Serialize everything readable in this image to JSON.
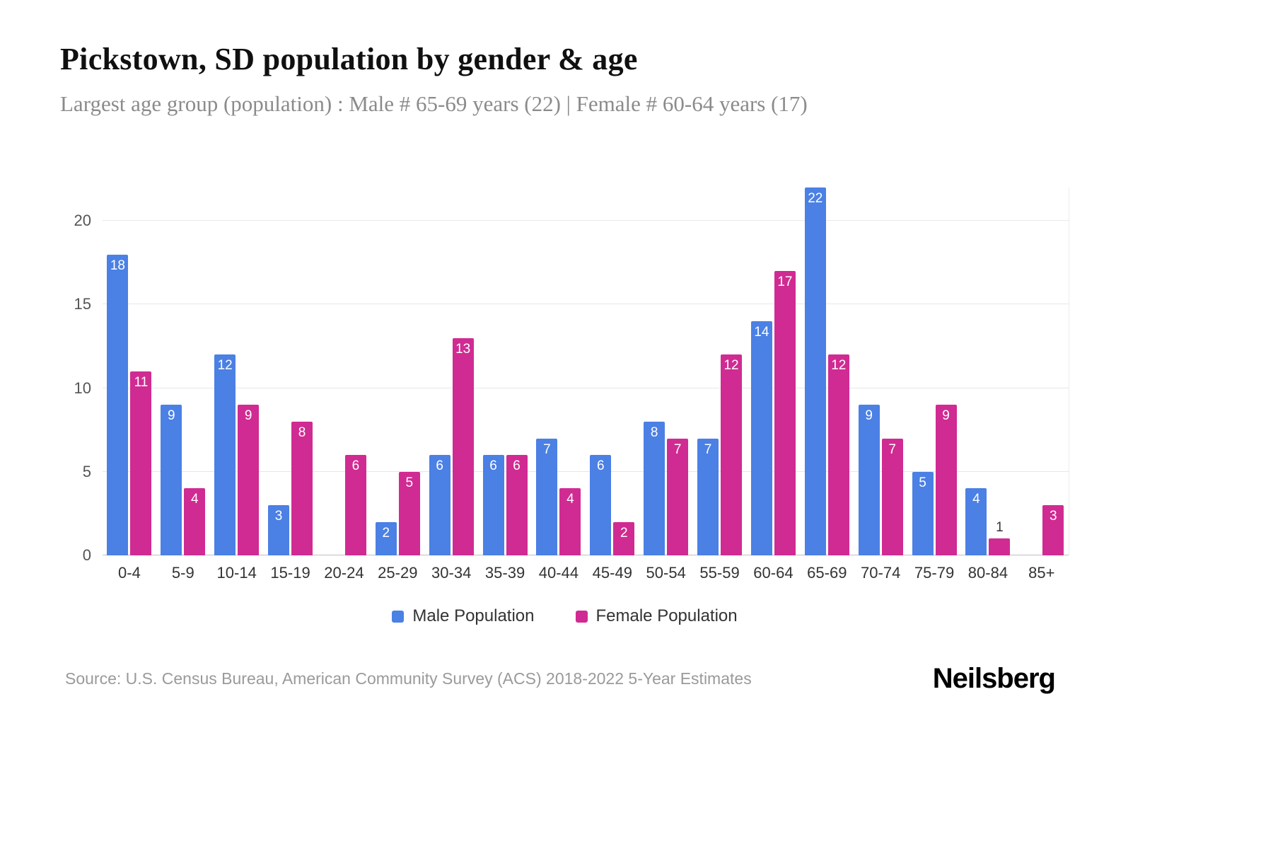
{
  "chart_data": {
    "type": "bar",
    "title": "Pickstown, SD population by gender & age",
    "subtitle": "Largest age group (population) : Male # 65-69 years (22) | Female # 60-64 years (17)",
    "categories": [
      "0-4",
      "5-9",
      "10-14",
      "15-19",
      "20-24",
      "25-29",
      "30-34",
      "35-39",
      "40-44",
      "45-49",
      "50-54",
      "55-59",
      "60-64",
      "65-69",
      "70-74",
      "75-79",
      "80-84",
      "85+"
    ],
    "series": [
      {
        "key": "male",
        "name": "Male Population",
        "color": "#4b80e4",
        "values": [
          18,
          9,
          12,
          3,
          0,
          2,
          6,
          6,
          7,
          6,
          8,
          7,
          14,
          22,
          9,
          5,
          4,
          0
        ]
      },
      {
        "key": "female",
        "name": "Female Population",
        "color": "#d02b92",
        "values": [
          11,
          4,
          9,
          8,
          6,
          5,
          13,
          6,
          4,
          2,
          7,
          12,
          17,
          12,
          7,
          9,
          1,
          3
        ]
      }
    ],
    "xlabel": "",
    "ylabel": "",
    "ylim": [
      0,
      22
    ],
    "yticks": [
      0,
      5,
      10,
      15,
      20
    ],
    "grid": "horizontal",
    "legend_position": "bottom",
    "source": "Source: U.S. Census Bureau, American Community Survey (ACS) 2018-2022 5-Year Estimates",
    "logo": "Neilsberg"
  }
}
